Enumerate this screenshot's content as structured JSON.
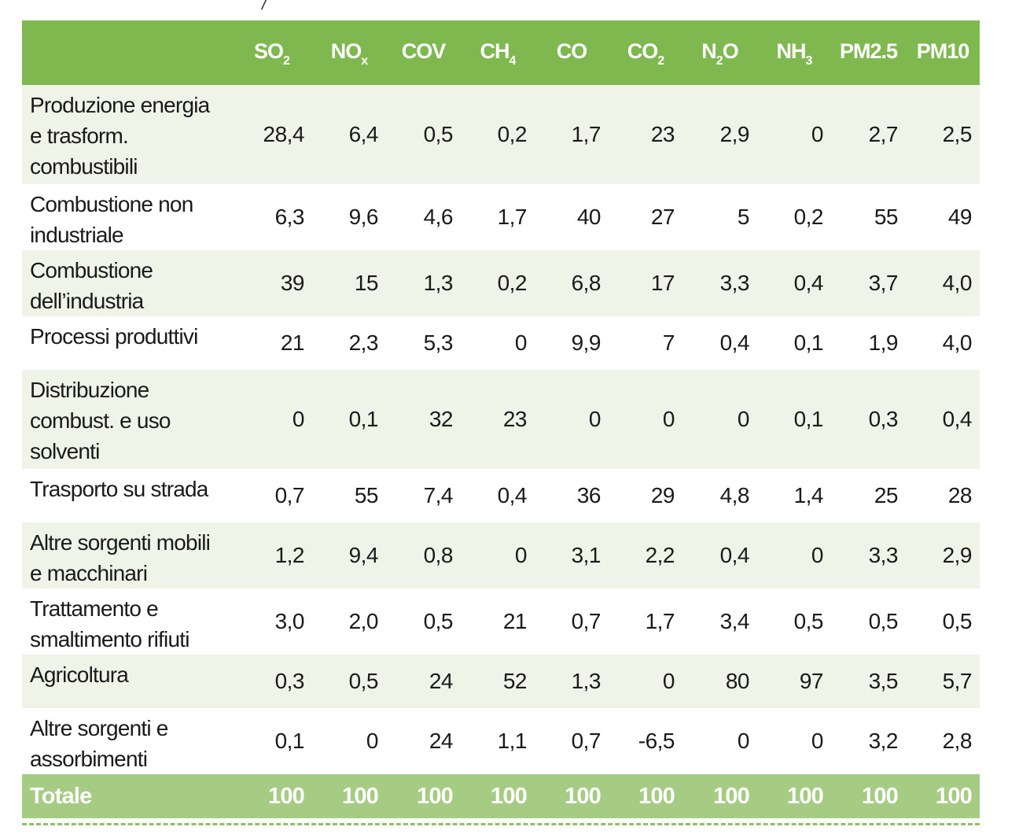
{
  "top_fragment": "/",
  "table": {
    "columns": [
      {
        "main": "SO",
        "sub": "2"
      },
      {
        "main": "NO",
        "sub": "x"
      },
      {
        "main": "COV",
        "sub": ""
      },
      {
        "main": "CH",
        "sub": "4"
      },
      {
        "main": "CO",
        "sub": ""
      },
      {
        "main": "CO",
        "sub": "2"
      },
      {
        "main": "N",
        "sub": "2",
        "after": "O"
      },
      {
        "main": "NH",
        "sub": "3"
      },
      {
        "main": "PM2.5",
        "sub": ""
      },
      {
        "main": "PM10",
        "sub": ""
      }
    ],
    "rows": [
      {
        "label": "Produzione energia e trasform. combustibili",
        "values": [
          "28,4",
          "6,4",
          "0,5",
          "0,2",
          "1,7",
          "23",
          "2,9",
          "0",
          "2,7",
          "2,5"
        ]
      },
      {
        "label": "Combustione non industriale",
        "values": [
          "6,3",
          "9,6",
          "4,6",
          "1,7",
          "40",
          "27",
          "5",
          "0,2",
          "55",
          "49"
        ]
      },
      {
        "label": "Combustione dell’industria",
        "values": [
          "39",
          "15",
          "1,3",
          "0,2",
          "6,8",
          "17",
          "3,3",
          "0,4",
          "3,7",
          "4,0"
        ]
      },
      {
        "label": "Processi produttivi",
        "values": [
          "21",
          "2,3",
          "5,3",
          "0",
          "9,9",
          "7",
          "0,4",
          "0,1",
          "1,9",
          "4,0"
        ]
      },
      {
        "label": "Distribuzione combust. e uso solventi",
        "values": [
          "0",
          "0,1",
          "32",
          "23",
          "0",
          "0",
          "0",
          "0,1",
          "0,3",
          "0,4"
        ]
      },
      {
        "label": "Trasporto su strada",
        "values": [
          "0,7",
          "55",
          "7,4",
          "0,4",
          "36",
          "29",
          "4,8",
          "1,4",
          "25",
          "28"
        ]
      },
      {
        "label": "Altre sorgenti mobili e macchinari",
        "values": [
          "1,2",
          "9,4",
          "0,8",
          "0",
          "3,1",
          "2,2",
          "0,4",
          "0",
          "3,3",
          "2,9"
        ]
      },
      {
        "label": "Trattamento e smaltimento rifiuti",
        "values": [
          "3,0",
          "2,0",
          "0,5",
          "21",
          "0,7",
          "1,7",
          "3,4",
          "0,5",
          "0,5",
          "0,5"
        ]
      },
      {
        "label": "Agricoltura",
        "values": [
          "0,3",
          "0,5",
          "24",
          "52",
          "1,3",
          "0",
          "80",
          "97",
          "3,5",
          "5,7"
        ]
      },
      {
        "label": "Altre sorgenti e assorbimenti",
        "values": [
          "0,1",
          "0",
          "24",
          "1,1",
          "0,7",
          "-6,5",
          "0",
          "0",
          "3,2",
          "2,8"
        ]
      }
    ],
    "total": {
      "label": "Totale",
      "values": [
        "100",
        "100",
        "100",
        "100",
        "100",
        "100",
        "100",
        "100",
        "100",
        "100"
      ]
    }
  }
}
